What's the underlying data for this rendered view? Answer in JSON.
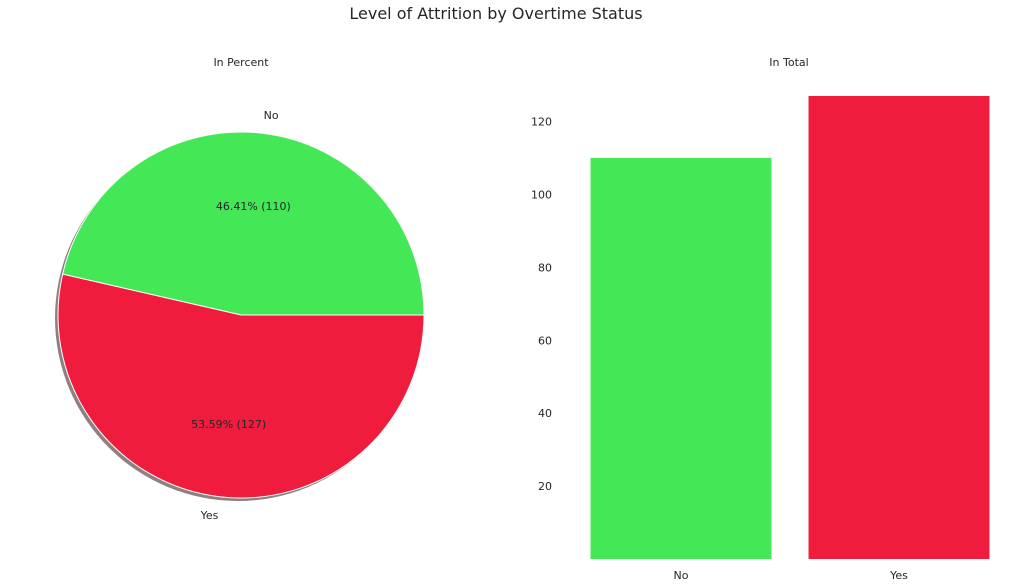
{
  "figure": {
    "title": "Level of Attrition by Overtime Status"
  },
  "colors": {
    "No": "#44e856",
    "Yes": "#ef1c3e",
    "shadow": "#7a6a6a"
  },
  "chart_data": [
    {
      "type": "pie",
      "title": "In Percent",
      "categories": [
        "No",
        "Yes"
      ],
      "values": [
        110,
        127
      ],
      "percent_labels": [
        "46.41%  (110)",
        "53.59%  (127)"
      ],
      "shadow": true
    },
    {
      "type": "bar",
      "title": "In Total",
      "categories": [
        "No",
        "Yes"
      ],
      "values": [
        110,
        127
      ],
      "ylim": [
        0,
        127
      ],
      "yticks": [
        20,
        40,
        60,
        80,
        100,
        120
      ],
      "grid": false,
      "xlabel": "",
      "ylabel": ""
    }
  ]
}
